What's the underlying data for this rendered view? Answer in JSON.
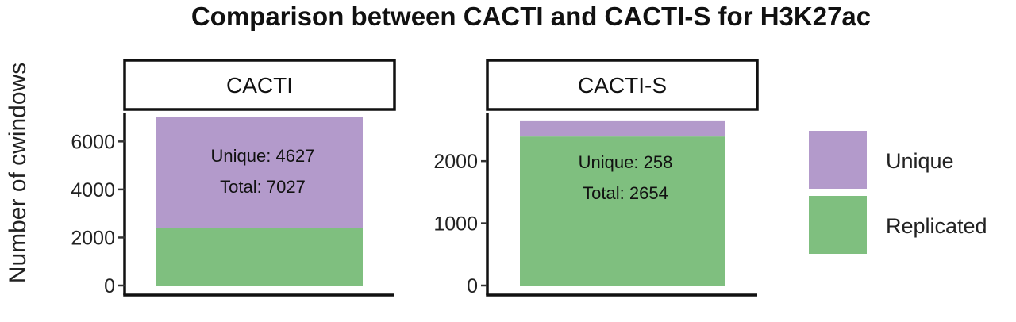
{
  "chart_data": {
    "type": "bar",
    "stacked": true,
    "title": "Comparison between CACTI and CACTI-S for H3K27ac",
    "ylabel": "Number of cwindows",
    "xlabel": "",
    "grid": false,
    "legend_position": "right",
    "series": [
      {
        "name": "Unique",
        "color": "#b39acb"
      },
      {
        "name": "Replicated",
        "color": "#7fbf7f"
      }
    ],
    "panels": [
      {
        "strip": "CACTI",
        "ylim": [
          0,
          7200
        ],
        "yticks": [
          0,
          2000,
          4000,
          6000
        ],
        "ytick_labels": [
          "0",
          "2000",
          "4000",
          "6000"
        ],
        "values": {
          "Replicated": 2400,
          "Unique": 4627
        },
        "annotations": [
          "Unique: 4627",
          "Total: 7027"
        ]
      },
      {
        "strip": "CACTI-S",
        "ylim": [
          0,
          2780
        ],
        "yticks": [
          0,
          1000,
          2000
        ],
        "ytick_labels": [
          "0",
          "1000",
          "2000"
        ],
        "values": {
          "Replicated": 2396,
          "Unique": 258
        },
        "annotations": [
          "Unique: 258",
          "Total: 2654"
        ]
      }
    ]
  }
}
